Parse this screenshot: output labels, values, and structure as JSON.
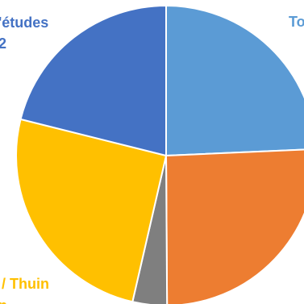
{
  "chart_data": {
    "type": "pie",
    "slices": [
      {
        "label": "To",
        "value": 24.3,
        "color": "#5B9BD5"
      },
      {
        "label": "",
        "value": 25.6,
        "color": "#ED7D31"
      },
      {
        "label": "",
        "value": 3.7,
        "color": "#7F7F7F"
      },
      {
        "label": "/ Thuin",
        "value": 25.3,
        "color": "#FFC000"
      },
      {
        "label": "'études",
        "value": 21.1,
        "color": "#4472C4"
      }
    ],
    "extra_labels": [
      {
        "text": "2",
        "color": "#4472C4"
      },
      {
        "text": "n",
        "color": "#FFC000"
      }
    ]
  }
}
